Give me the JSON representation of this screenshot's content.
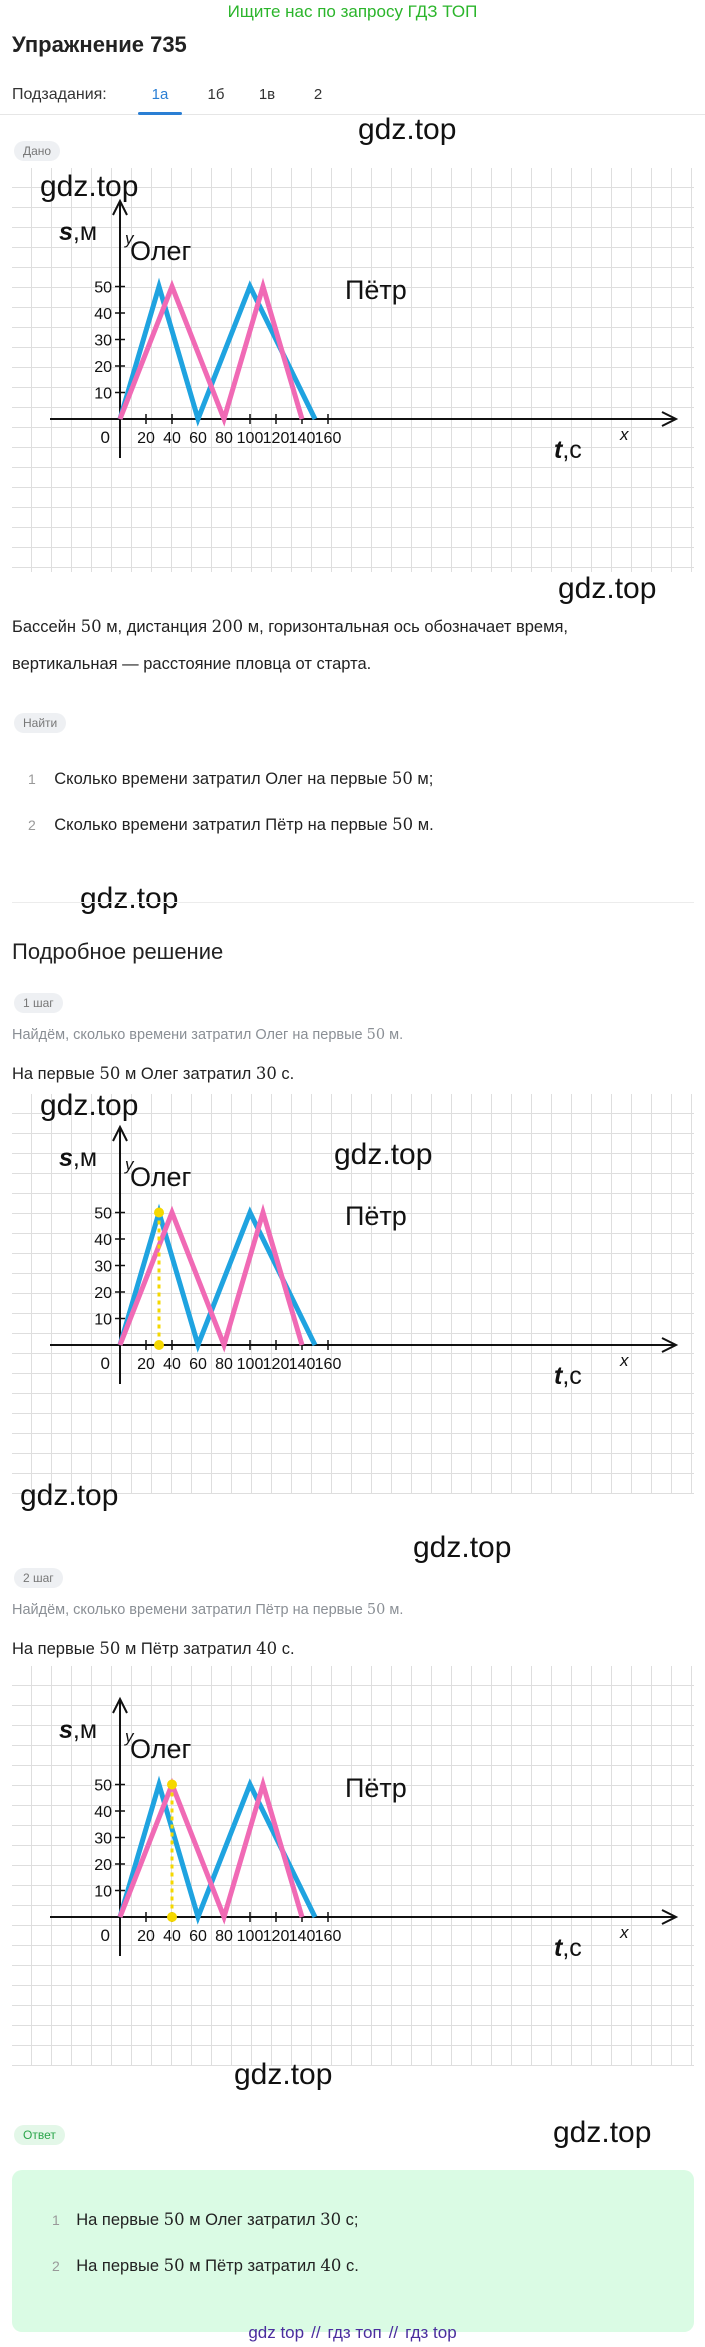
{
  "top_ad": "Ищите нас по запросу ГДЗ ТОП",
  "title": "Упражнение 735",
  "subtasks": {
    "label": "Подзадания:",
    "tabs": [
      "1а",
      "1б",
      "1в",
      "2"
    ],
    "active_index": 0
  },
  "watermark": "gdz.top",
  "condition": {
    "chip": "Дано",
    "text_line1_a": "Бассейн ",
    "num_50": "50",
    "text_line1_b": " м, дистанция ",
    "num_200": "200",
    "text_line1_c": " м, горизонтальная ось обозначает время,",
    "text_line2": "вертикальная — расстояние пловца от старта."
  },
  "find": {
    "chip": "Найти",
    "items": [
      {
        "num": "1",
        "text_a": "Сколько времени затратил Олег на первые ",
        "math": "50",
        "text_b": " м;"
      },
      {
        "num": "2",
        "text_a": "Сколько времени затратил Пётр на первые ",
        "math": "50",
        "text_b": " м."
      }
    ]
  },
  "solution": {
    "heading": "Подробное решение",
    "steps": [
      {
        "chip": "1 шаг",
        "hint_a": "Найдём, сколько времени затратил Олег на первые ",
        "hint_math": "50",
        "hint_b": " м.",
        "result_a": "На первые ",
        "result_math1": "50",
        "result_b": " м Олег затратил ",
        "result_math2": "30",
        "result_c": " с."
      },
      {
        "chip": "2 шаг",
        "hint_a": "Найдём, сколько времени затратил Пётр на первые ",
        "hint_math": "50",
        "hint_b": " м.",
        "result_a": "На первые ",
        "result_math1": "50",
        "result_b": " м Пётр затратил ",
        "result_math2": "40",
        "result_c": " с."
      }
    ]
  },
  "answer": {
    "chip": "Ответ",
    "items": [
      {
        "num": "1",
        "text_a": "На первые ",
        "math1": "50",
        "text_b": " м Олег затратил ",
        "math2": "30",
        "text_c": " с;"
      },
      {
        "num": "2",
        "text_a": "На первые ",
        "math1": "50",
        "text_b": " м Пётр затратил ",
        "math2": "40",
        "text_c": " с."
      }
    ]
  },
  "footer": [
    "gdz top",
    "гдз топ",
    "гдз top"
  ],
  "footer_sep": "//",
  "chart_data": [
    {
      "type": "line",
      "ylabel_main": "s",
      "ylabel_unit": ",м",
      "yaxis_letter": "y",
      "xlabel_main": "t",
      "xlabel_unit": ",с",
      "xaxis_letter": "x",
      "origin": "0",
      "x_ticks": [
        20,
        40,
        60,
        80,
        100,
        120,
        140,
        160
      ],
      "y_ticks": [
        10,
        20,
        30,
        40,
        50
      ],
      "xlim": [
        0,
        160
      ],
      "ylim": [
        0,
        50
      ],
      "series": [
        {
          "name": "Олег",
          "color": "#1fa3e0",
          "x": [
            0,
            30,
            60,
            100,
            150
          ],
          "y": [
            0,
            50,
            0,
            50,
            0
          ]
        },
        {
          "name": "Пётр",
          "color": "#f06ab5",
          "x": [
            0,
            40,
            80,
            110,
            140
          ],
          "y": [
            0,
            50,
            0,
            50,
            0
          ]
        }
      ],
      "highlight": null
    },
    {
      "type": "line",
      "ylabel_main": "s",
      "ylabel_unit": ",м",
      "yaxis_letter": "y",
      "xlabel_main": "t",
      "xlabel_unit": ",с",
      "xaxis_letter": "x",
      "origin": "0",
      "x_ticks": [
        20,
        40,
        60,
        80,
        100,
        120,
        140,
        160
      ],
      "y_ticks": [
        10,
        20,
        30,
        40,
        50
      ],
      "xlim": [
        0,
        160
      ],
      "ylim": [
        0,
        50
      ],
      "series": [
        {
          "name": "Олег",
          "color": "#1fa3e0",
          "x": [
            0,
            30,
            60,
            100,
            150
          ],
          "y": [
            0,
            50,
            0,
            50,
            0
          ]
        },
        {
          "name": "Пётр",
          "color": "#f06ab5",
          "x": [
            0,
            40,
            80,
            110,
            140
          ],
          "y": [
            0,
            50,
            0,
            50,
            0
          ]
        }
      ],
      "highlight": {
        "x": 30,
        "y": 50,
        "color": "#f5d800"
      }
    },
    {
      "type": "line",
      "ylabel_main": "s",
      "ylabel_unit": ",м",
      "yaxis_letter": "y",
      "xlabel_main": "t",
      "xlabel_unit": ",с",
      "xaxis_letter": "x",
      "origin": "0",
      "x_ticks": [
        20,
        40,
        60,
        80,
        100,
        120,
        140,
        160
      ],
      "y_ticks": [
        10,
        20,
        30,
        40,
        50
      ],
      "xlim": [
        0,
        160
      ],
      "ylim": [
        0,
        50
      ],
      "series": [
        {
          "name": "Олег",
          "color": "#1fa3e0",
          "x": [
            0,
            30,
            60,
            100,
            150
          ],
          "y": [
            0,
            50,
            0,
            50,
            0
          ]
        },
        {
          "name": "Пётр",
          "color": "#f06ab5",
          "x": [
            0,
            40,
            80,
            110,
            140
          ],
          "y": [
            0,
            50,
            0,
            50,
            0
          ]
        }
      ],
      "highlight": {
        "x": 40,
        "y": 50,
        "color": "#f5d800"
      }
    }
  ]
}
